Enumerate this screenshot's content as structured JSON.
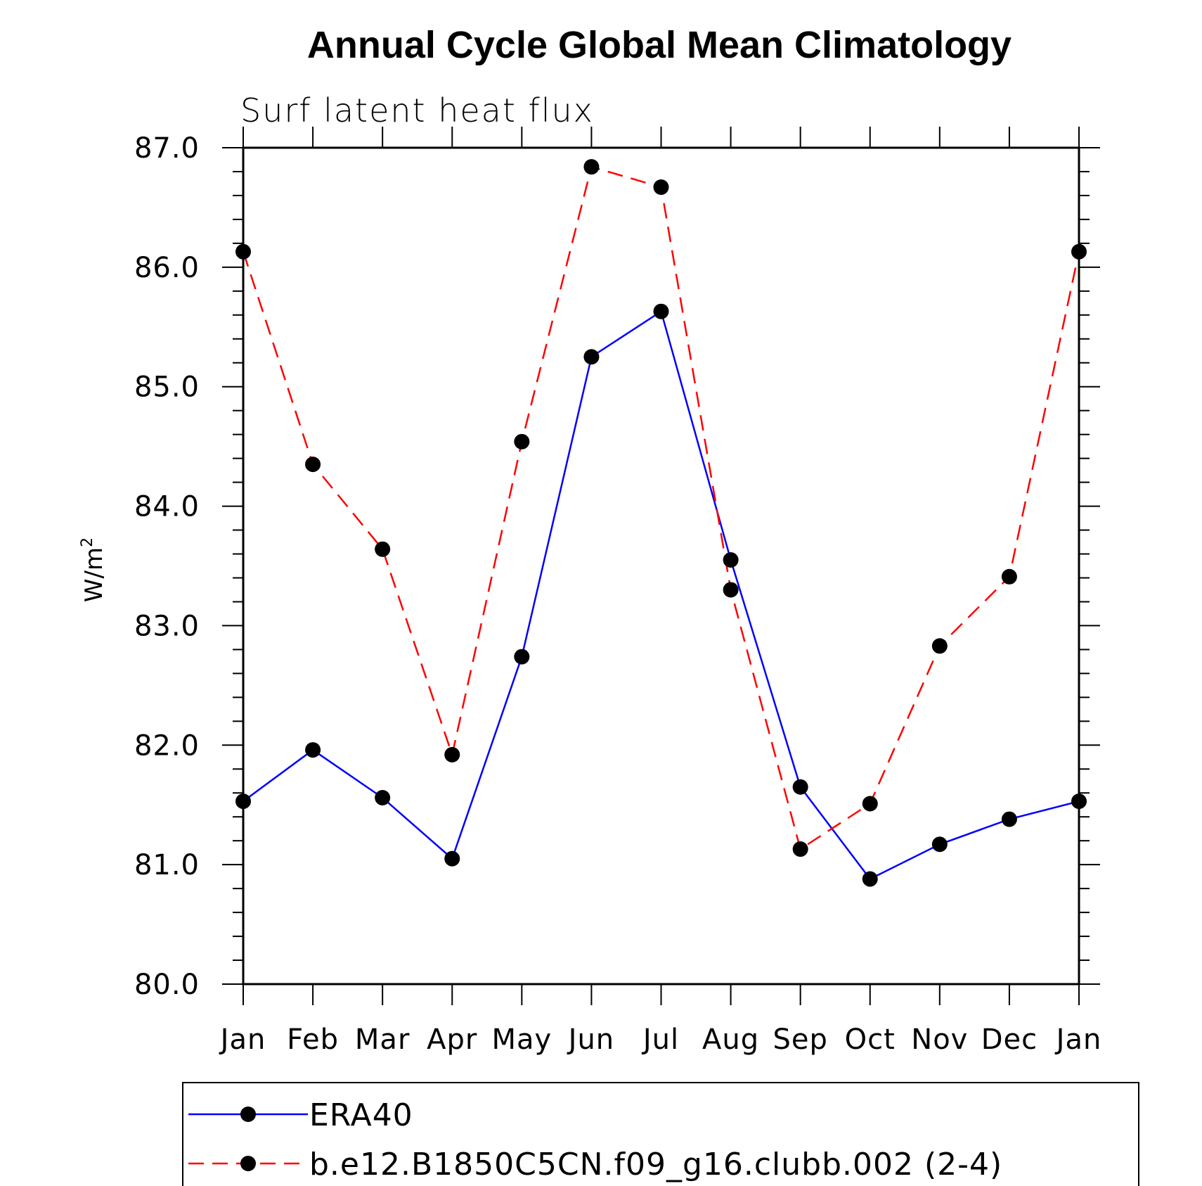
{
  "chart_data": {
    "type": "line",
    "title": "Annual Cycle Global Mean Climatology",
    "subtitle": "Surf latent heat flux",
    "ylabel": "W/m",
    "ylabel_superscript": "2",
    "xlabel": "",
    "ylim": [
      80.0,
      87.0
    ],
    "yticks": [
      "80.0",
      "81.0",
      "82.0",
      "83.0",
      "84.0",
      "85.0",
      "86.0",
      "87.0"
    ],
    "categories": [
      "Jan",
      "Feb",
      "Mar",
      "Apr",
      "May",
      "Jun",
      "Jul",
      "Aug",
      "Sep",
      "Oct",
      "Nov",
      "Dec",
      "Jan"
    ],
    "series": [
      {
        "name": "ERA40",
        "color": "#0000ff",
        "dash": "solid",
        "values": [
          81.53,
          81.96,
          81.56,
          81.05,
          82.74,
          85.25,
          85.63,
          83.55,
          81.65,
          80.88,
          81.17,
          81.38,
          81.53
        ]
      },
      {
        "name": "b.e12.B1850C5CN.f09_g16.clubb.002 (2-4)",
        "color": "#ff0000",
        "dash": "dashed",
        "values": [
          86.13,
          84.35,
          83.64,
          81.92,
          84.54,
          86.84,
          86.67,
          83.3,
          81.13,
          81.51,
          82.83,
          83.41,
          86.13
        ]
      }
    ],
    "legend_position": "bottom"
  }
}
